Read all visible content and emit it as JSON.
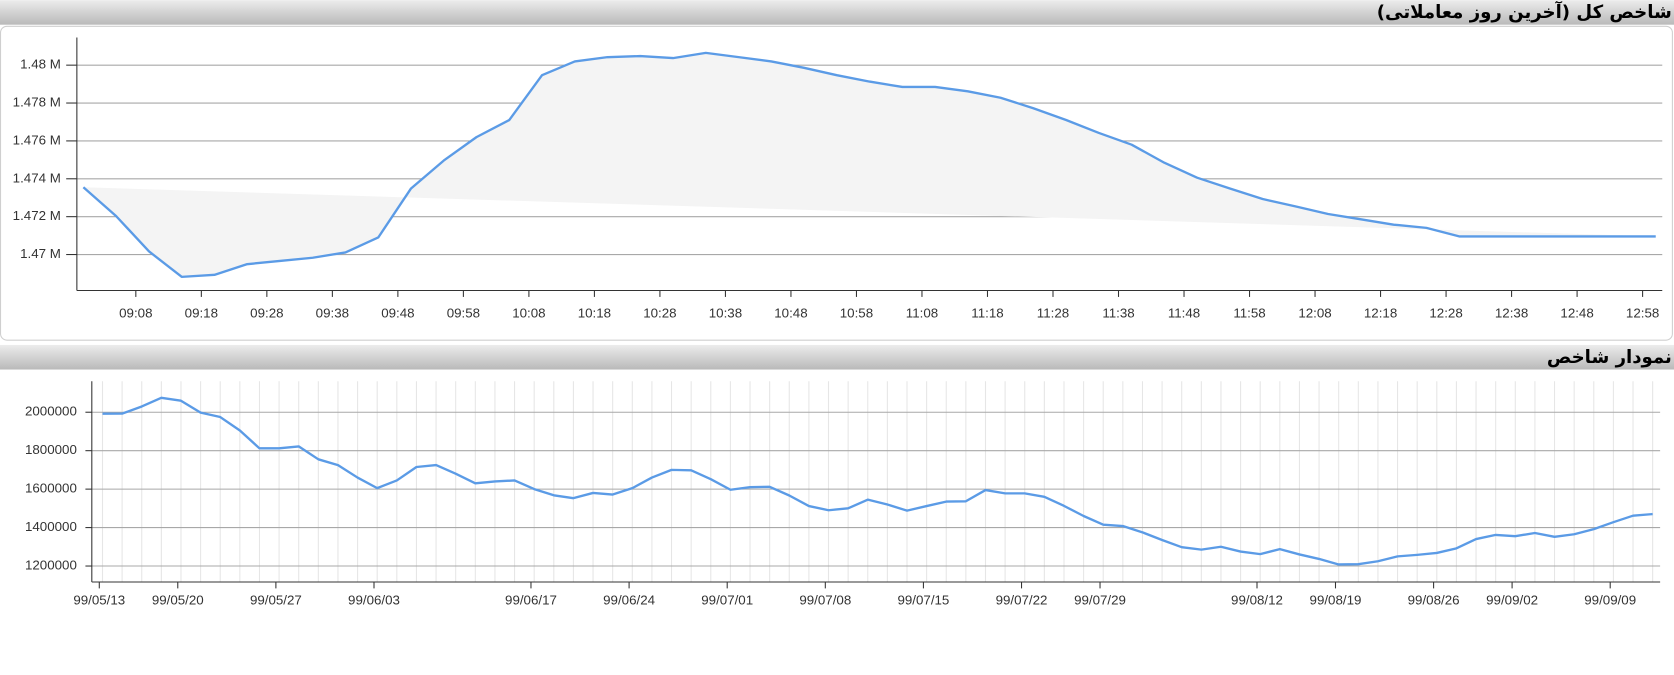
{
  "chart_data": [
    {
      "type": "line",
      "title": "شاخص کل (آخرین روز معاملاتی)",
      "color": "#5b9be6",
      "fill": "#f4f4f4",
      "grid": true,
      "x": [
        "09:00",
        "09:05",
        "09:10",
        "09:15",
        "09:20",
        "09:25",
        "09:30",
        "09:35",
        "09:40",
        "09:45",
        "09:50",
        "09:55",
        "10:00",
        "10:05",
        "10:10",
        "10:15",
        "10:20",
        "10:25",
        "10:30",
        "10:35",
        "10:40",
        "10:45",
        "10:50",
        "10:55",
        "11:00",
        "11:05",
        "11:10",
        "11:15",
        "11:20",
        "11:25",
        "11:30",
        "11:35",
        "11:40",
        "11:45",
        "11:50",
        "11:55",
        "12:00",
        "12:05",
        "12:10",
        "12:15",
        "12:20",
        "12:25",
        "12:30",
        "12:35",
        "12:40",
        "12:45",
        "12:50",
        "12:55",
        "13:00"
      ],
      "values": [
        1473550,
        1472030,
        1470170,
        1468820,
        1468930,
        1469490,
        1469660,
        1469830,
        1470110,
        1470900,
        1473490,
        1474960,
        1476200,
        1477100,
        1479470,
        1480200,
        1480420,
        1480480,
        1480370,
        1480650,
        1480420,
        1480200,
        1479860,
        1479470,
        1479130,
        1478850,
        1478850,
        1478620,
        1478280,
        1477720,
        1477100,
        1476420,
        1475800,
        1474850,
        1474060,
        1473490,
        1472930,
        1472540,
        1472140,
        1471860,
        1471580,
        1471410,
        1470960,
        1470960,
        1470960,
        1470960,
        1470960,
        1470960,
        1470960
      ],
      "xlim": [
        "08:59",
        "13:01"
      ],
      "xticks": [
        "09:08",
        "09:18",
        "09:28",
        "09:38",
        "09:48",
        "09:58",
        "10:08",
        "10:18",
        "10:28",
        "10:38",
        "10:48",
        "10:58",
        "11:08",
        "11:18",
        "11:28",
        "11:38",
        "11:48",
        "11:58",
        "12:08",
        "12:18",
        "12:28",
        "12:38",
        "12:48",
        "12:58"
      ],
      "ylim": [
        1468100,
        1481460
      ],
      "yticks": [
        {
          "value": 1470000,
          "label": "1.47 M"
        },
        {
          "value": 1472000,
          "label": "1.472 M"
        },
        {
          "value": 1474000,
          "label": "1.474 M"
        },
        {
          "value": 1476000,
          "label": "1.476 M"
        },
        {
          "value": 1478000,
          "label": "1.478 M"
        },
        {
          "value": 1480000,
          "label": "1.48 M"
        }
      ]
    },
    {
      "type": "line",
      "title": "نمودار شاخص",
      "color": "#5b9be6",
      "grid": true,
      "categories": [
        "99/05/13",
        null,
        null,
        null,
        "99/05/20",
        null,
        null,
        null,
        null,
        "99/05/27",
        null,
        null,
        null,
        null,
        "99/06/03",
        null,
        null,
        null,
        null,
        null,
        null,
        null,
        "99/06/17",
        null,
        null,
        null,
        null,
        "99/06/24",
        null,
        null,
        null,
        null,
        "99/07/01",
        null,
        null,
        null,
        null,
        "99/07/08",
        null,
        null,
        null,
        null,
        "99/07/15",
        null,
        null,
        null,
        null,
        "99/07/22",
        null,
        null,
        null,
        "99/07/29",
        null,
        null,
        null,
        null,
        null,
        null,
        null,
        "99/08/12",
        null,
        null,
        null,
        "99/08/19",
        null,
        null,
        null,
        null,
        "99/08/26",
        null,
        null,
        null,
        "99/09/02",
        null,
        null,
        null,
        null,
        "99/09/09",
        null,
        null
      ],
      "values": [
        1992000,
        1993000,
        2030000,
        2075000,
        2060000,
        1998000,
        1975000,
        1905000,
        1812000,
        1812000,
        1822000,
        1755000,
        1725000,
        1660000,
        1605000,
        1645000,
        1715000,
        1725000,
        1680000,
        1630000,
        1640000,
        1645000,
        1600000,
        1568000,
        1553000,
        1580000,
        1572000,
        1605000,
        1660000,
        1700000,
        1698000,
        1652000,
        1597000,
        1610000,
        1612000,
        1567000,
        1512000,
        1490000,
        1500000,
        1545000,
        1520000,
        1488000,
        1512000,
        1535000,
        1537000,
        1595000,
        1578000,
        1578000,
        1560000,
        1513000,
        1460000,
        1415000,
        1408000,
        1375000,
        1335000,
        1298000,
        1285000,
        1300000,
        1275000,
        1262000,
        1288000,
        1260000,
        1237000,
        1208000,
        1210000,
        1225000,
        1250000,
        1258000,
        1268000,
        1292000,
        1340000,
        1362000,
        1355000,
        1372000,
        1352000,
        1365000,
        1392000,
        1428000,
        1462000,
        1470000
      ],
      "ylim": [
        1117000,
        2161000
      ],
      "yticks": [
        1200000,
        1400000,
        1600000,
        1800000,
        2000000
      ]
    }
  ]
}
